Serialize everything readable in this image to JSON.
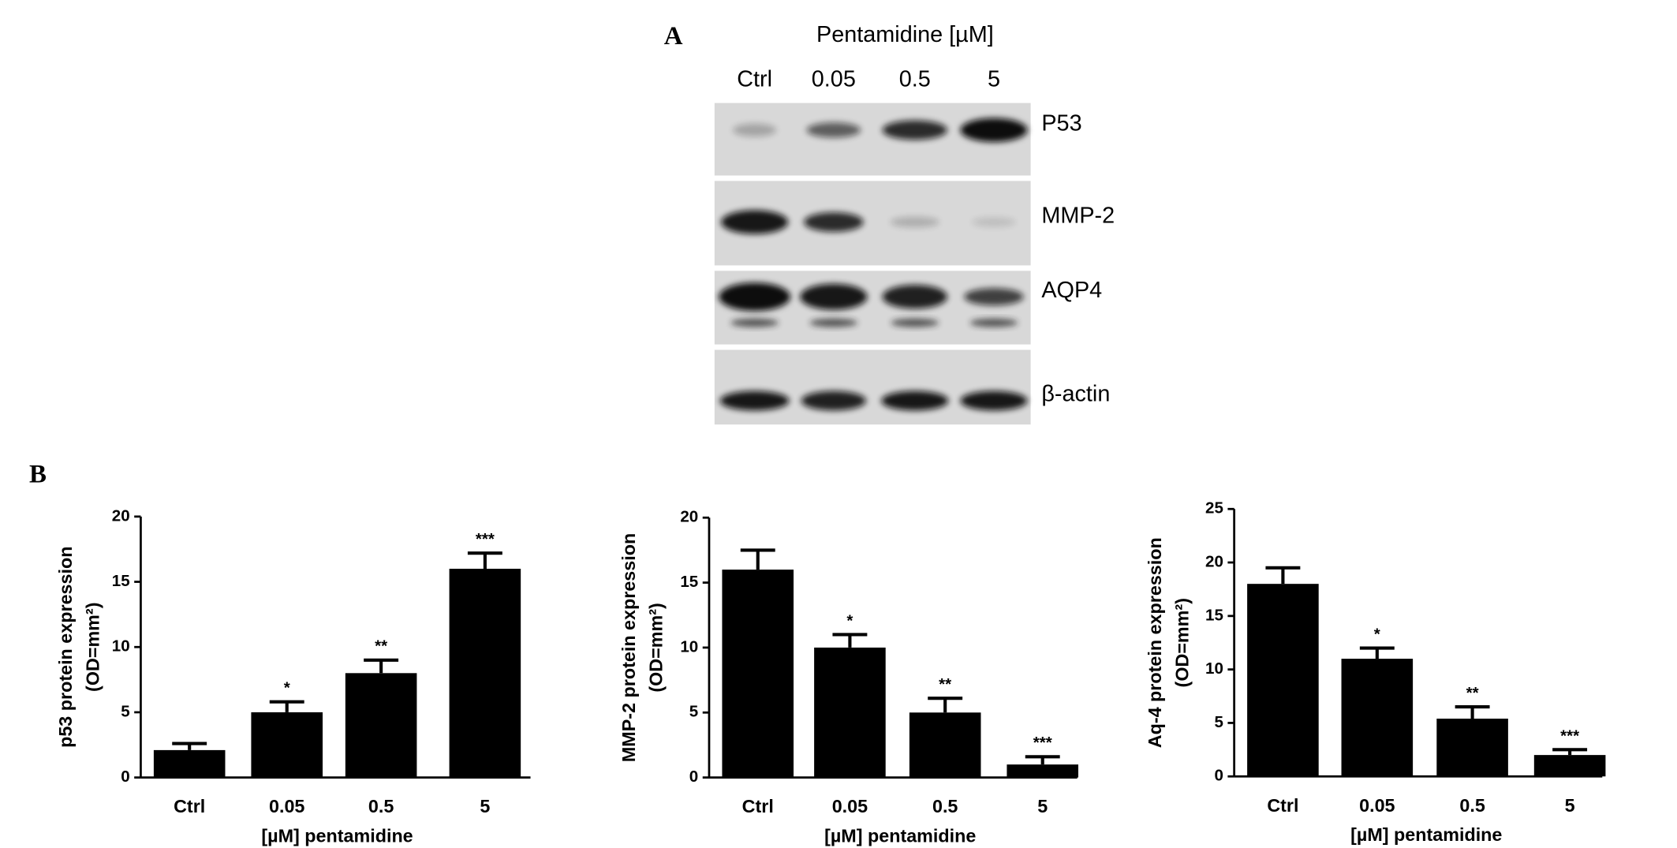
{
  "panel_labels": [
    "A",
    "B"
  ],
  "blot": {
    "title": "Pentamidine [µM]",
    "lanes": [
      "Ctrl",
      "0.05",
      "0.5",
      "5"
    ],
    "rows": [
      "P53",
      "MMP-2",
      "AQP4",
      "β-actin"
    ]
  },
  "chart_data": [
    {
      "type": "bar",
      "y_label": [
        "p53 protein expression",
        "(OD=mm²)"
      ],
      "x_label": "[µM] pentamidine",
      "categories": [
        "Ctrl",
        "0.05",
        "0.5",
        "5"
      ],
      "values": [
        2.1,
        5,
        8,
        16
      ],
      "errors": [
        0.5,
        0.8,
        1.0,
        1.2
      ],
      "annotations": [
        null,
        "*",
        "**",
        "***"
      ],
      "color": "#000000",
      "ylim": [
        0,
        20
      ],
      "yticks": [
        0,
        5,
        10,
        15,
        20
      ]
    },
    {
      "type": "bar",
      "y_label": [
        "MMP-2 protein expression",
        "(OD=mm²)"
      ],
      "x_label": "[µM] pentamidine",
      "categories": [
        "Ctrl",
        "0.05",
        "0.5",
        "5"
      ],
      "values": [
        16,
        10,
        5,
        1
      ],
      "errors": [
        1.5,
        1.0,
        1.1,
        0.6
      ],
      "annotations": [
        null,
        "*",
        "**",
        "***"
      ],
      "color": "#000000",
      "ylim": [
        0,
        20
      ],
      "yticks": [
        0,
        5,
        10,
        15,
        20
      ]
    },
    {
      "type": "bar",
      "y_label": [
        "Aq-4 protein expression",
        "(OD=mm²)"
      ],
      "x_label": "[µM] pentamidine",
      "categories": [
        "Ctrl",
        "0.05",
        "0.5",
        "5"
      ],
      "values": [
        18,
        11,
        5.4,
        2
      ],
      "errors": [
        1.5,
        1.0,
        1.1,
        0.5
      ],
      "annotations": [
        null,
        "*",
        "**",
        "***"
      ],
      "color": "#000000",
      "ylim": [
        0,
        25
      ],
      "yticks": [
        0,
        5,
        10,
        15,
        20,
        25
      ]
    }
  ]
}
